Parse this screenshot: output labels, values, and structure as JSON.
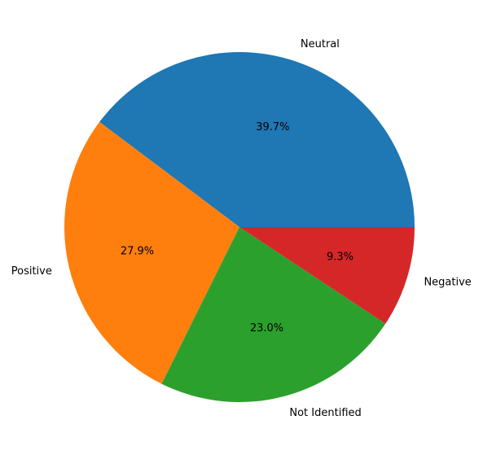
{
  "chart_data": {
    "type": "pie",
    "title": "",
    "start_angle_deg": 0,
    "direction": "counterclockwise",
    "slices": [
      {
        "label": "Neutral",
        "value": 39.7,
        "pct_label": "39.7%",
        "color": "#1f77b4"
      },
      {
        "label": "Positive",
        "value": 27.9,
        "pct_label": "27.9%",
        "color": "#ff7f0e"
      },
      {
        "label": "Not Identified",
        "value": 23.0,
        "pct_label": "23.0%",
        "color": "#2ca02c"
      },
      {
        "label": "Negative",
        "value": 9.3,
        "pct_label": "9.3%",
        "color": "#d62728"
      }
    ]
  }
}
